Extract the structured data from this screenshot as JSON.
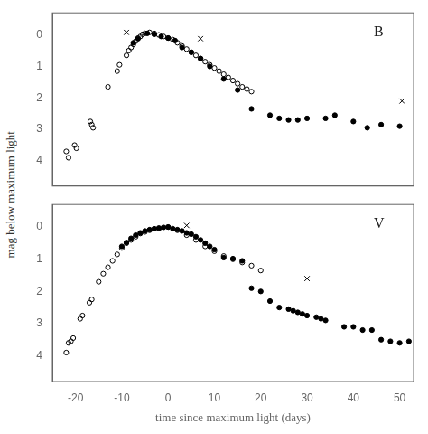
{
  "chart_data": [
    {
      "type": "scatter",
      "ylabel": "mag below maximum light",
      "annotations": [
        "B"
      ],
      "xlim": [
        -25,
        53
      ],
      "xticks": [
        -20,
        -10,
        0,
        10,
        20,
        30,
        40,
        50
      ],
      "ylim": [
        4.8,
        -0.7
      ],
      "yticks": [
        0,
        1,
        2,
        3,
        4
      ],
      "grid": false,
      "tick_labels": "y",
      "series": [
        {
          "marker": "circle_open",
          "color": "black",
          "x": [
            -22.0,
            -21.5,
            -20.2,
            -19.8,
            -16.8,
            -16.5,
            -16.2,
            -13.0,
            -11.0,
            -10.5,
            -9.0,
            -8.5,
            -8.0,
            -7.5,
            -7.0,
            -6.5,
            -6.0,
            -5.5,
            -5.0,
            -4.0,
            -3.0,
            -2.0,
            -1.0,
            0.0,
            1.0,
            2.0,
            3.0,
            4.0,
            5.0,
            6.0,
            7.0,
            8.0,
            9.0,
            10.0,
            11.0,
            12.0,
            13.0,
            14.0,
            15.0,
            16.0,
            17.0,
            18.0
          ],
          "values": [
            3.7,
            3.9,
            3.5,
            3.6,
            2.75,
            2.85,
            2.95,
            1.65,
            1.15,
            0.95,
            0.65,
            0.5,
            0.4,
            0.3,
            0.2,
            0.1,
            0.05,
            -0.02,
            -0.05,
            -0.08,
            -0.05,
            0.0,
            0.05,
            0.1,
            0.15,
            0.25,
            0.35,
            0.45,
            0.55,
            0.65,
            0.75,
            0.85,
            0.95,
            1.05,
            1.15,
            1.25,
            1.35,
            1.45,
            1.55,
            1.65,
            1.72,
            1.8
          ]
        },
        {
          "marker": "circle",
          "color": "black",
          "x": [
            -7.5,
            -6.5,
            -4.5,
            -3.0,
            -1.5,
            0.0,
            1.5,
            3.0,
            5.0,
            7.0,
            9.0,
            12.0,
            15.0,
            18.0,
            22.0,
            24.0,
            26.0,
            28.0,
            30.0,
            34.0,
            36.0,
            40.0,
            43.0,
            46.0,
            50.0
          ],
          "values": [
            0.25,
            0.12,
            -0.05,
            -0.02,
            0.05,
            0.1,
            0.18,
            0.4,
            0.55,
            0.75,
            1.0,
            1.4,
            1.75,
            2.35,
            2.55,
            2.65,
            2.7,
            2.7,
            2.65,
            2.65,
            2.55,
            2.75,
            2.95,
            2.85,
            2.9
          ]
        },
        {
          "marker": "x",
          "color": "black",
          "x": [
            -9.0,
            7.0,
            50.5
          ],
          "values": [
            -0.08,
            0.12,
            2.1
          ]
        }
      ]
    },
    {
      "type": "scatter",
      "xlabel": "time since maximum light (days)",
      "annotations": [
        "V"
      ],
      "xlim": [
        -25,
        53
      ],
      "xticks": [
        -20,
        -10,
        0,
        10,
        20,
        30,
        40,
        50
      ],
      "ylim": [
        4.8,
        -0.7
      ],
      "yticks": [
        0,
        1,
        2,
        3,
        4
      ],
      "grid": false,
      "series": [
        {
          "marker": "circle_open",
          "color": "black",
          "x": [
            -22.0,
            -21.5,
            -21.0,
            -20.5,
            -19.0,
            -18.5,
            -17.0,
            -16.5,
            -15.0,
            -14.0,
            -13.0,
            -12.0,
            -11.0,
            -10.0,
            -9.0,
            -8.0,
            -7.0,
            -6.0,
            -5.0,
            -4.0,
            -2.0,
            0.0,
            2.0,
            4.0,
            6.0,
            8.0,
            10.0,
            12.0,
            14.0,
            16.0,
            18.0,
            20.0
          ],
          "values": [
            3.9,
            3.6,
            3.55,
            3.45,
            2.85,
            2.75,
            2.35,
            2.25,
            1.7,
            1.45,
            1.25,
            1.05,
            0.85,
            0.65,
            0.5,
            0.4,
            0.3,
            0.2,
            0.15,
            0.1,
            0.05,
            0.0,
            0.1,
            0.25,
            0.4,
            0.6,
            0.75,
            0.9,
            1.0,
            1.1,
            1.2,
            1.35
          ]
        },
        {
          "marker": "circle",
          "color": "black",
          "x": [
            -10.0,
            -9.0,
            -8.0,
            -7.0,
            -6.0,
            -5.0,
            -4.0,
            -3.0,
            -2.0,
            -1.0,
            0.0,
            1.0,
            2.0,
            3.0,
            4.0,
            5.0,
            6.0,
            7.0,
            8.0,
            9.0,
            10.0,
            12.0,
            14.0,
            16.0,
            18.0,
            20.0,
            22.0,
            24.0,
            26.0,
            27.0,
            28.0,
            29.0,
            30.0,
            32.0,
            33.0,
            34.0,
            38.0,
            40.0,
            42.0,
            44.0,
            46.0,
            48.0,
            50.0,
            52.0
          ],
          "values": [
            0.6,
            0.48,
            0.35,
            0.25,
            0.18,
            0.12,
            0.08,
            0.05,
            0.03,
            0.01,
            0.0,
            0.05,
            0.08,
            0.12,
            0.18,
            0.22,
            0.3,
            0.4,
            0.5,
            0.6,
            0.7,
            0.95,
            0.98,
            1.05,
            1.9,
            2.0,
            2.3,
            2.5,
            2.55,
            2.6,
            2.65,
            2.7,
            2.75,
            2.8,
            2.85,
            2.9,
            3.1,
            3.1,
            3.2,
            3.2,
            3.5,
            3.55,
            3.6,
            3.55
          ]
        },
        {
          "marker": "x",
          "color": "black",
          "x": [
            4.0,
            30.0
          ],
          "values": [
            -0.05,
            1.6
          ]
        }
      ]
    }
  ]
}
